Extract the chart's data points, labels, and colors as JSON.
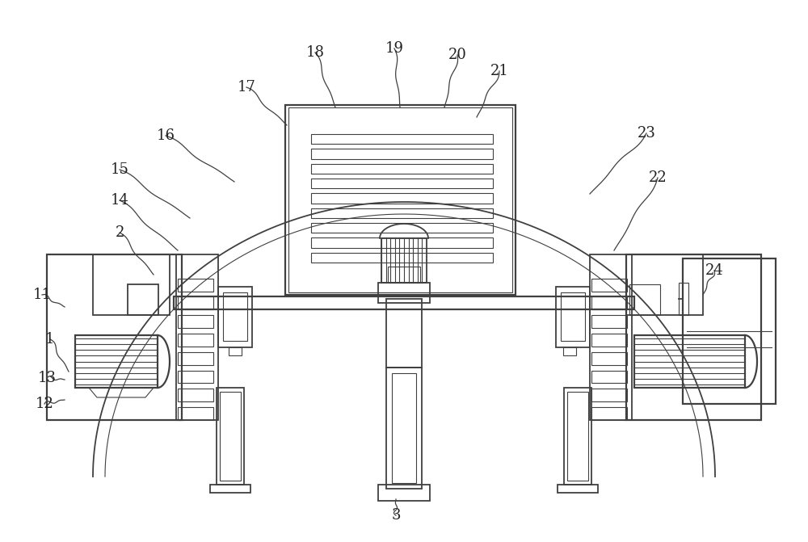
{
  "bg_color": "#ffffff",
  "lc": "#404040",
  "lw": 1.3,
  "lw2": 1.6,
  "lw_thin": 0.8,
  "figsize": [
    10.0,
    6.71
  ],
  "dpi": 100
}
